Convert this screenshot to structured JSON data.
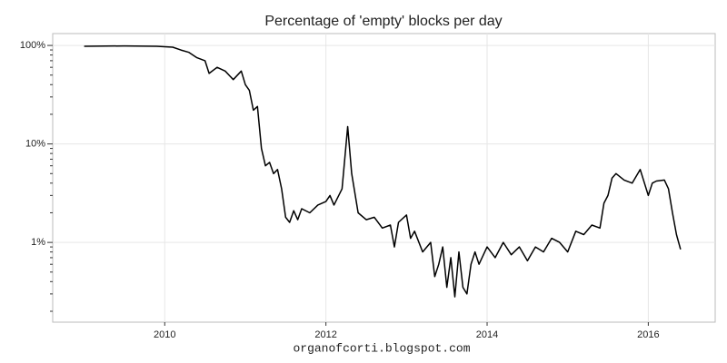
{
  "chart_data": {
    "type": "line",
    "title": "Percentage of 'empty' blocks per day",
    "footer": "organofcorti.blogspot.com",
    "log_y": true,
    "grid": true,
    "color": "#000000",
    "xlim": [
      2008.61,
      2016.83
    ],
    "xticks": [
      2010,
      2012,
      2014,
      2016
    ],
    "ylim": [
      0.155,
      132
    ],
    "yticks": [
      {
        "value": 1,
        "label": "1%"
      },
      {
        "value": 10,
        "label": "10%"
      },
      {
        "value": 100,
        "label": "100%"
      }
    ],
    "yminorticks": [
      0.2,
      0.3,
      0.4,
      0.5,
      0.6,
      0.7,
      0.8,
      0.9,
      2,
      3,
      4,
      5,
      6,
      7,
      8,
      9,
      20,
      30,
      40,
      50,
      60,
      70,
      80,
      90
    ],
    "x": [
      2009.0,
      2009.5,
      2009.9,
      2010.1,
      2010.2,
      2010.3,
      2010.4,
      2010.5,
      2010.55,
      2010.65,
      2010.75,
      2010.85,
      2010.95,
      2011.0,
      2011.05,
      2011.1,
      2011.15,
      2011.2,
      2011.25,
      2011.3,
      2011.35,
      2011.4,
      2011.45,
      2011.5,
      2011.55,
      2011.6,
      2011.65,
      2011.7,
      2011.8,
      2011.9,
      2012.0,
      2012.05,
      2012.1,
      2012.2,
      2012.27,
      2012.32,
      2012.4,
      2012.5,
      2012.6,
      2012.7,
      2012.8,
      2012.85,
      2012.9,
      2013.0,
      2013.05,
      2013.1,
      2013.2,
      2013.3,
      2013.35,
      2013.4,
      2013.45,
      2013.5,
      2013.55,
      2013.6,
      2013.65,
      2013.7,
      2013.75,
      2013.8,
      2013.85,
      2013.9,
      2014.0,
      2014.1,
      2014.2,
      2014.3,
      2014.4,
      2014.5,
      2014.6,
      2014.7,
      2014.8,
      2014.9,
      2015.0,
      2015.1,
      2015.2,
      2015.3,
      2015.4,
      2015.45,
      2015.5,
      2015.55,
      2015.6,
      2015.7,
      2015.8,
      2015.9,
      2016.0,
      2016.05,
      2016.1,
      2016.2,
      2016.25,
      2016.3,
      2016.35,
      2016.4
    ],
    "values": [
      98,
      99,
      98,
      96,
      90,
      85,
      75,
      70,
      52,
      60,
      55,
      45,
      55,
      40,
      35,
      22,
      24,
      9,
      6,
      6.5,
      5,
      5.5,
      3.5,
      1.8,
      1.6,
      2.1,
      1.7,
      2.2,
      2.0,
      2.4,
      2.6,
      3.0,
      2.4,
      3.5,
      15,
      5,
      2.0,
      1.7,
      1.8,
      1.4,
      1.5,
      0.9,
      1.6,
      1.9,
      1.1,
      1.3,
      0.8,
      1.0,
      0.45,
      0.6,
      0.9,
      0.35,
      0.7,
      0.28,
      0.8,
      0.35,
      0.3,
      0.6,
      0.8,
      0.6,
      0.9,
      0.7,
      1.0,
      0.75,
      0.9,
      0.65,
      0.9,
      0.8,
      1.1,
      1.0,
      0.8,
      1.3,
      1.2,
      1.5,
      1.4,
      2.5,
      3.0,
      4.5,
      5.0,
      4.3,
      4.0,
      5.5,
      3.0,
      4.0,
      4.2,
      4.3,
      3.5,
      2.0,
      1.2,
      0.85
    ]
  }
}
